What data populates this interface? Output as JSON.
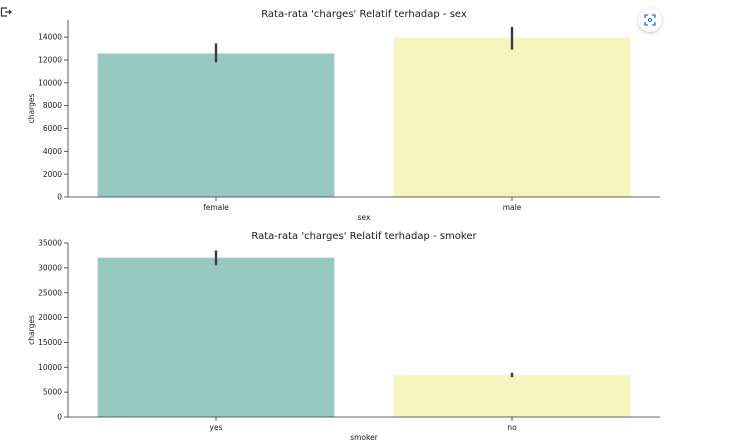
{
  "chart_data": [
    {
      "type": "bar",
      "title": "Rata-rata 'charges' Relatif terhadap - sex",
      "xlabel": "sex",
      "ylabel": "charges",
      "categories": [
        "female",
        "male"
      ],
      "values": [
        12570,
        13950
      ],
      "error_bars": [
        [
          11800,
          13450
        ],
        [
          12900,
          14900
        ]
      ],
      "colors": [
        "#96c9bf",
        "#f5f5bc"
      ],
      "ylim": [
        0,
        15500
      ],
      "yticks": [
        0,
        2000,
        4000,
        6000,
        8000,
        10000,
        12000,
        14000
      ],
      "grid": false
    },
    {
      "type": "bar",
      "title": "Rata-rata 'charges' Relatif terhadap - smoker",
      "xlabel": "smoker",
      "ylabel": "charges",
      "categories": [
        "yes",
        "no"
      ],
      "values": [
        32050,
        8430
      ],
      "error_bars": [
        [
          30500,
          33500
        ],
        [
          8000,
          8900
        ]
      ],
      "colors": [
        "#96c9bf",
        "#f5f5bc"
      ],
      "ylim": [
        0,
        35000
      ],
      "yticks": [
        0,
        5000,
        10000,
        15000,
        20000,
        25000,
        30000,
        35000
      ],
      "grid": false
    }
  ],
  "icons": {
    "output": "output-arrow-icon",
    "fullscreen": "fullscreen-icon"
  }
}
